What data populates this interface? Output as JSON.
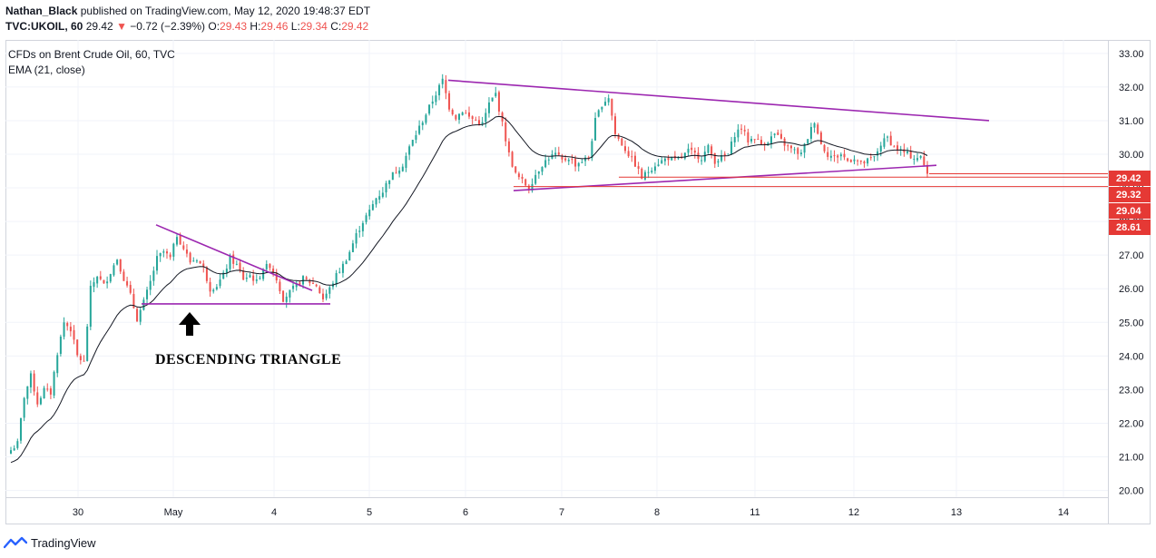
{
  "header": {
    "author": "Nathan_Black",
    "published": "published on TradingView.com, May 12, 2020 19:48:37 EDT",
    "symbol_line": {
      "symbol": "TVC:UKOIL, 60",
      "last": "29.42",
      "change": "−0.72 (−2.39%)",
      "o_label": "O:",
      "o": "29.43",
      "h_label": "H:",
      "h": "29.46",
      "l_label": "L:",
      "l": "29.34",
      "c_label": "C:",
      "c": "29.42"
    }
  },
  "legend": {
    "title": "CFDs on Brent Crude Oil, 60, TVC",
    "indicator": "EMA (21, close)"
  },
  "footer": {
    "brand": "TradingView"
  },
  "chart_data": {
    "type": "candlestick",
    "ylim": [
      19.8,
      33.4
    ],
    "y_ticks": [
      "33.00",
      "32.00",
      "31.00",
      "30.00",
      "29.00",
      "28.00",
      "27.00",
      "26.00",
      "25.00",
      "24.00",
      "23.00",
      "22.00",
      "21.00",
      "20.00"
    ],
    "x_labels": [
      "30",
      "May",
      "4",
      "5",
      "6",
      "7",
      "8",
      "11",
      "12",
      "13",
      "14"
    ],
    "price_labels": [
      {
        "value": 29.42,
        "text": "29.42"
      },
      {
        "value": 29.32,
        "text": "29.32"
      },
      {
        "value": 29.04,
        "text": "29.04"
      },
      {
        "value": 28.61,
        "text": "28.61"
      }
    ],
    "annotation": "DESCENDING TRIANGLE",
    "colors": {
      "up": "#26a69a",
      "down": "#ef5350",
      "ema": "#131722",
      "trend": "#9c27b0",
      "level": "#e53935",
      "grid": "#f0f3fa"
    },
    "grid": true,
    "legend_position": "top-left",
    "anchors": [
      [
        0,
        21.2
      ],
      [
        2,
        21.4
      ],
      [
        4,
        22.8
      ],
      [
        6,
        23.4
      ],
      [
        8,
        22.6
      ],
      [
        10,
        23.0
      ],
      [
        12,
        22.9
      ],
      [
        14,
        24.1
      ],
      [
        16,
        25.0
      ],
      [
        18,
        24.8
      ],
      [
        20,
        24.0
      ],
      [
        22,
        23.8
      ],
      [
        24,
        26.0
      ],
      [
        26,
        26.4
      ],
      [
        28,
        26.1
      ],
      [
        30,
        26.5
      ],
      [
        32,
        26.9
      ],
      [
        34,
        26.3
      ],
      [
        36,
        25.8
      ],
      [
        38,
        25.1
      ],
      [
        40,
        25.6
      ],
      [
        42,
        26.2
      ],
      [
        44,
        26.9
      ],
      [
        46,
        27.1
      ],
      [
        48,
        26.9
      ],
      [
        50,
        27.6
      ],
      [
        52,
        27.2
      ],
      [
        54,
        26.8
      ],
      [
        56,
        26.9
      ],
      [
        58,
        26.6
      ],
      [
        60,
        26.0
      ],
      [
        62,
        26.1
      ],
      [
        64,
        26.4
      ],
      [
        66,
        26.9
      ],
      [
        68,
        26.7
      ],
      [
        70,
        26.3
      ],
      [
        72,
        26.4
      ],
      [
        74,
        26.2
      ],
      [
        76,
        26.6
      ],
      [
        78,
        26.7
      ],
      [
        80,
        26.3
      ],
      [
        82,
        25.7
      ],
      [
        84,
        25.9
      ],
      [
        86,
        26.1
      ],
      [
        88,
        26.3
      ],
      [
        90,
        26.2
      ],
      [
        92,
        26.1
      ],
      [
        94,
        25.7
      ],
      [
        96,
        26.0
      ],
      [
        98,
        26.4
      ],
      [
        100,
        26.7
      ],
      [
        102,
        27.1
      ],
      [
        104,
        27.6
      ],
      [
        106,
        28.0
      ],
      [
        108,
        28.3
      ],
      [
        110,
        28.7
      ],
      [
        112,
        28.9
      ],
      [
        114,
        29.3
      ],
      [
        116,
        29.5
      ],
      [
        118,
        29.7
      ],
      [
        120,
        30.2
      ],
      [
        122,
        30.6
      ],
      [
        124,
        31.0
      ],
      [
        126,
        31.4
      ],
      [
        128,
        31.8
      ],
      [
        130,
        32.2
      ],
      [
        132,
        31.4
      ],
      [
        134,
        31.1
      ],
      [
        136,
        31.3
      ],
      [
        138,
        31.1
      ],
      [
        140,
        31.0
      ],
      [
        142,
        30.9
      ],
      [
        144,
        31.5
      ],
      [
        146,
        31.8
      ],
      [
        148,
        30.9
      ],
      [
        150,
        30.0
      ],
      [
        152,
        29.4
      ],
      [
        154,
        29.2
      ],
      [
        156,
        29.0
      ],
      [
        158,
        29.4
      ],
      [
        160,
        29.7
      ],
      [
        162,
        29.9
      ],
      [
        164,
        30.0
      ],
      [
        166,
        29.8
      ],
      [
        168,
        29.9
      ],
      [
        170,
        29.7
      ],
      [
        172,
        29.8
      ],
      [
        174,
        29.9
      ],
      [
        176,
        31.0
      ],
      [
        178,
        31.5
      ],
      [
        180,
        31.7
      ],
      [
        182,
        30.6
      ],
      [
        184,
        30.3
      ],
      [
        186,
        30.0
      ],
      [
        188,
        29.7
      ],
      [
        190,
        29.3
      ],
      [
        192,
        29.5
      ],
      [
        194,
        29.7
      ],
      [
        196,
        29.8
      ],
      [
        198,
        29.9
      ],
      [
        200,
        29.8
      ],
      [
        202,
        29.9
      ],
      [
        204,
        30.1
      ],
      [
        206,
        30.0
      ],
      [
        208,
        29.9
      ],
      [
        210,
        30.2
      ],
      [
        212,
        29.8
      ],
      [
        214,
        29.9
      ],
      [
        216,
        30.0
      ],
      [
        218,
        30.6
      ],
      [
        220,
        30.8
      ],
      [
        222,
        30.4
      ],
      [
        224,
        30.5
      ],
      [
        226,
        30.3
      ],
      [
        228,
        30.4
      ],
      [
        230,
        30.6
      ],
      [
        232,
        30.4
      ],
      [
        234,
        30.2
      ],
      [
        236,
        30.1
      ],
      [
        238,
        30.0
      ],
      [
        240,
        30.5
      ],
      [
        242,
        31.0
      ],
      [
        244,
        30.3
      ],
      [
        246,
        30.0
      ],
      [
        248,
        29.9
      ],
      [
        250,
        30.0
      ],
      [
        252,
        29.8
      ],
      [
        254,
        29.9
      ],
      [
        256,
        29.7
      ],
      [
        258,
        29.8
      ],
      [
        260,
        29.9
      ],
      [
        262,
        30.3
      ],
      [
        264,
        30.5
      ],
      [
        266,
        30.2
      ],
      [
        268,
        30.1
      ],
      [
        270,
        30.0
      ],
      [
        272,
        29.9
      ],
      [
        274,
        29.9
      ],
      [
        276,
        29.42
      ]
    ]
  }
}
